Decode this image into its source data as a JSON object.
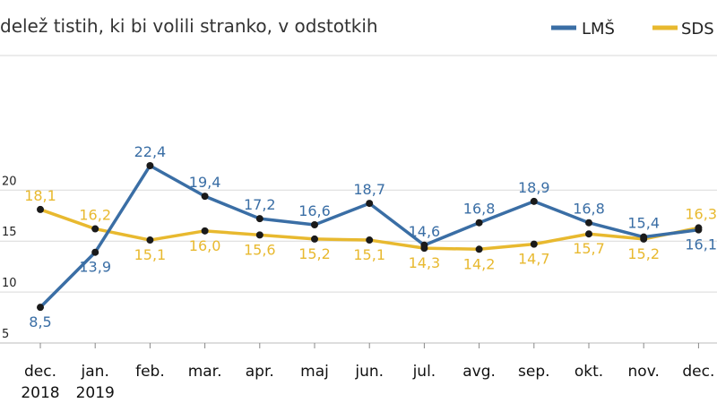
{
  "chart_data": {
    "type": "line",
    "title": "",
    "subtitle": "delež tistih, ki bi volili stranko, v odstotkih",
    "categories": [
      [
        "dec.",
        "2018"
      ],
      [
        "jan.",
        "2019"
      ],
      [
        "feb."
      ],
      [
        "mar."
      ],
      [
        "apr."
      ],
      [
        "maj"
      ],
      [
        "jun."
      ],
      [
        "jul."
      ],
      [
        "avg."
      ],
      [
        "sep."
      ],
      [
        "okt."
      ],
      [
        "nov."
      ],
      [
        "dec."
      ]
    ],
    "series": [
      {
        "name": "LMŠ",
        "color": "#3a6ea5",
        "values": [
          8.5,
          13.9,
          22.4,
          19.4,
          17.2,
          16.6,
          18.7,
          14.6,
          16.8,
          18.9,
          16.8,
          15.4,
          16.1
        ],
        "labels": [
          "8,5",
          "13,9",
          "22,4",
          "19,4",
          "17,2",
          "16,6",
          "18,7",
          "14,6",
          "16,8",
          "18,9",
          "16,8",
          "15,4",
          "16,1"
        ]
      },
      {
        "name": "SDS",
        "color": "#e8b92f",
        "values": [
          18.1,
          16.2,
          15.1,
          16.0,
          15.6,
          15.2,
          15.1,
          14.3,
          14.2,
          14.7,
          15.7,
          15.2,
          16.3
        ],
        "labels": [
          "18,1",
          "16,2",
          "15,1",
          "16,0",
          "15,6",
          "15,2",
          "15,1",
          "14,3",
          "14,2",
          "14,7",
          "15,7",
          "15,2",
          "16,3"
        ]
      }
    ],
    "y_ticks": [
      "5",
      "10",
      "15",
      "20"
    ],
    "y_tick_values": [
      5,
      10,
      15,
      20
    ],
    "ylim": [
      5,
      25
    ],
    "grid": true,
    "legend_position": "top-right"
  }
}
